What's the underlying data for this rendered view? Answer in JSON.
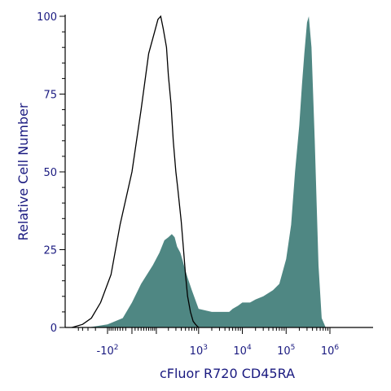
{
  "chart_data": {
    "type": "area",
    "title": "",
    "xlabel": "cFluor R720 CD45RA",
    "ylabel": "Relative Cell Number",
    "x_scale": "biexponential (log with linear region near zero)",
    "x_tick_labels": [
      {
        "base": "-10",
        "exp": "2",
        "value": -100
      },
      {
        "base": "10",
        "exp": "3",
        "value": 1000
      },
      {
        "base": "10",
        "exp": "4",
        "value": 10000
      },
      {
        "base": "10",
        "exp": "5",
        "value": 100000
      },
      {
        "base": "10",
        "exp": "6",
        "value": 1000000
      }
    ],
    "ylim": [
      0,
      100
    ],
    "y_ticks": [
      0,
      25,
      50,
      75,
      100
    ],
    "grid": false,
    "colors": {
      "filled_series": "#4f8783",
      "outline_series": "#000000",
      "axis_text": "#1a1a80",
      "axis_line": "#000000"
    },
    "series": [
      {
        "style": "filled",
        "x": [
          -300,
          -100,
          -30,
          0,
          30,
          80,
          120,
          160,
          200,
          240,
          280,
          320,
          380,
          420,
          480,
          560,
          700,
          1000,
          2000,
          3000,
          4000,
          5000,
          6000,
          8000,
          10000,
          15000,
          20000,
          30000,
          50000,
          70000,
          100000,
          130000,
          160000,
          200000,
          230000,
          260000,
          300000,
          330000,
          380000,
          450000,
          550000,
          650000,
          800000
        ],
        "y": [
          0,
          1,
          3,
          8,
          14,
          20,
          24,
          28,
          29,
          30,
          29,
          26,
          24,
          22,
          19,
          16,
          12,
          6,
          5,
          5,
          5,
          5,
          6,
          7,
          8,
          8,
          9,
          10,
          12,
          14,
          22,
          33,
          50,
          65,
          78,
          88,
          98,
          100,
          90,
          60,
          20,
          3,
          0
        ]
      },
      {
        "style": "outline",
        "x": [
          -700,
          -400,
          -250,
          -150,
          -80,
          -40,
          0,
          30,
          60,
          90,
          110,
          130,
          150,
          180,
          200,
          230,
          260,
          300,
          330,
          360,
          400,
          450,
          500,
          560,
          650,
          750,
          850,
          950,
          1000
        ],
        "y": [
          0,
          1,
          3,
          8,
          17,
          33,
          50,
          70,
          88,
          95,
          99,
          100,
          96,
          90,
          81,
          72,
          60,
          50,
          45,
          40,
          34,
          25,
          17,
          10,
          5,
          2,
          1,
          0.3,
          0
        ]
      }
    ]
  }
}
